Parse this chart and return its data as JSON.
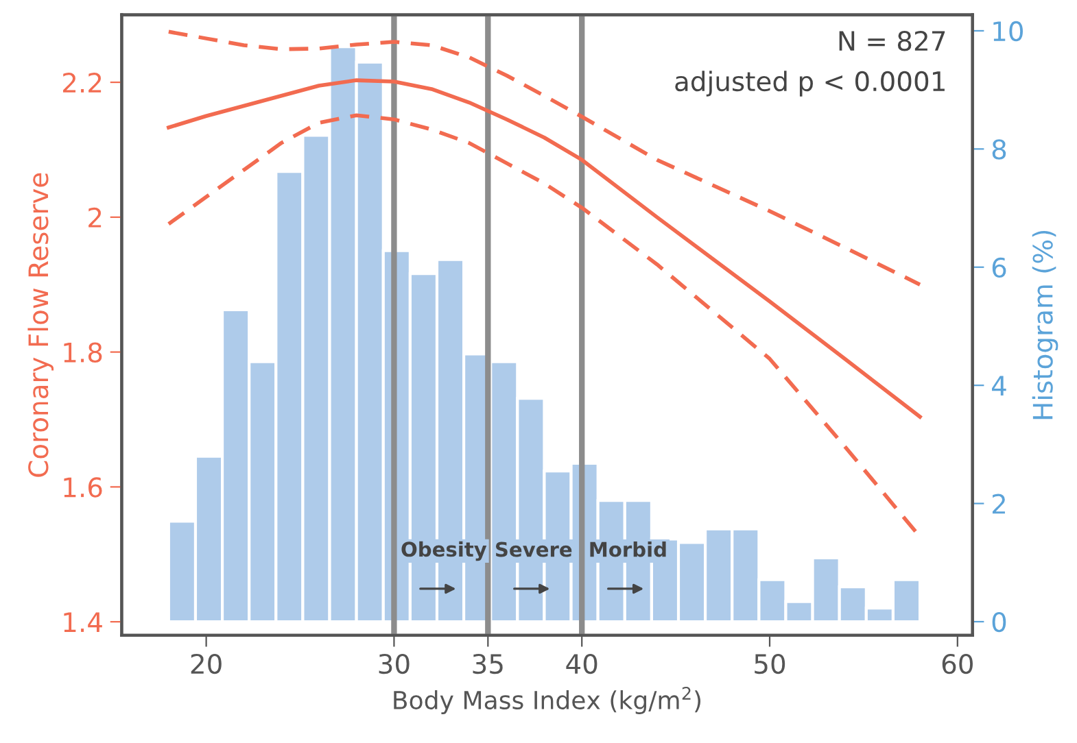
{
  "chart_data": {
    "type": "line",
    "xlabel": "Body Mass Index (kg/m$^{2}$)",
    "ylabel": "Coronary Flow Reserve",
    "y2label": "Histogram (%)",
    "annotations": [
      "N = 827",
      "adjusted p < 0.0001"
    ],
    "xlim": [
      15.5,
      60.8
    ],
    "xticks": [
      20,
      30,
      35,
      40,
      50,
      60
    ],
    "ylim": [
      1.38,
      2.3
    ],
    "yticks": [
      1.4,
      1.6,
      1.8,
      2,
      2.2
    ],
    "y2lim": [
      -0.23,
      10.27
    ],
    "y2ticks": [
      0,
      2,
      4,
      6,
      8,
      10
    ],
    "grid": false,
    "legend": false,
    "ref_lines": [
      {
        "axis": "x",
        "value": 30,
        "label": "Obesity",
        "color": "#8c8c8c"
      },
      {
        "axis": "x",
        "value": 35,
        "label": "Severe",
        "color": "#8c8c8c"
      },
      {
        "axis": "x",
        "value": 40,
        "label": "Morbid",
        "color": "#8c8c8c"
      }
    ],
    "series": [
      {
        "type": "histogram",
        "axis": "y2",
        "color": "#aecbea",
        "bins": [
          18,
          19.429,
          20.857,
          22.286,
          23.714,
          25.143,
          26.571,
          28,
          29.429,
          30.857,
          32.286,
          33.714,
          35.143,
          36.571,
          38,
          39.429,
          40.857,
          42.286,
          43.714,
          45.143,
          46.571,
          48,
          49.429,
          50.857,
          52.286,
          53.714,
          55.143,
          56.571,
          58
        ],
        "values": [
          1.7,
          2.8,
          5.28,
          4.4,
          7.62,
          8.23,
          9.73,
          9.47,
          6.28,
          5.89,
          6.13,
          4.53,
          4.4,
          3.78,
          2.55,
          2.68,
          2.05,
          2.05,
          1.4,
          1.34,
          1.57,
          1.57,
          0.71,
          0.34,
          1.08,
          0.59,
          0.23,
          0.71
        ]
      },
      {
        "axis": "y",
        "color": "#f26b50",
        "line_style": "dashed",
        "x": [
          18,
          20,
          22,
          24,
          26,
          28,
          30,
          32,
          34,
          36,
          38,
          40,
          44,
          50,
          54,
          58
        ],
        "values": [
          2.275,
          2.265,
          2.255,
          2.249,
          2.25,
          2.256,
          2.26,
          2.255,
          2.237,
          2.21,
          2.18,
          2.149,
          2.085,
          2.009,
          1.955,
          1.9
        ]
      },
      {
        "axis": "y",
        "color": "#f26b50",
        "line_style": "solid",
        "x": [
          18,
          20,
          22,
          24,
          26,
          28,
          30,
          32,
          34,
          36,
          38,
          40,
          44,
          50,
          54,
          58
        ],
        "values": [
          2.133,
          2.15,
          2.165,
          2.18,
          2.195,
          2.203,
          2.201,
          2.19,
          2.17,
          2.145,
          2.118,
          2.085,
          2.0,
          1.875,
          1.79,
          1.704
        ]
      },
      {
        "axis": "y",
        "color": "#f26b50",
        "line_style": "dashed",
        "x": [
          18,
          20,
          22,
          24,
          26,
          28,
          30,
          32,
          34,
          36,
          38,
          40,
          44,
          50,
          54,
          58
        ],
        "values": [
          1.99,
          2.03,
          2.07,
          2.11,
          2.14,
          2.151,
          2.145,
          2.13,
          2.11,
          2.08,
          2.05,
          2.014,
          1.93,
          1.79,
          1.66,
          1.526
        ]
      }
    ]
  }
}
